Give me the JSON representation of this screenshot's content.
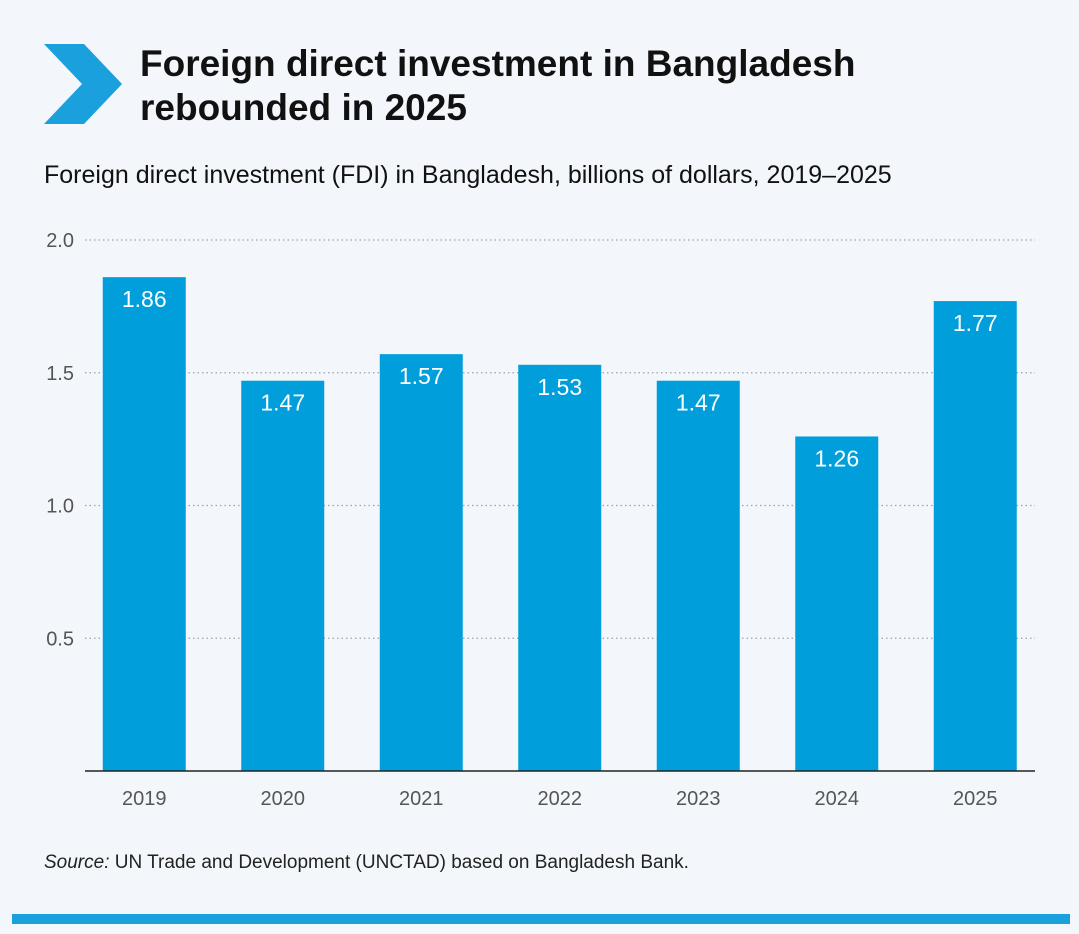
{
  "header": {
    "title": "Foreign direct investment in Bangladesh rebounded in 2025",
    "subtitle": "Foreign direct investment (FDI) in Bangladesh, billions of dollars, 2019–2025",
    "chevron_icon": "chevron-right-icon"
  },
  "source": {
    "label": "Source:",
    "text": " UN Trade and Development (UNCTAD) based on Bangladesh Bank."
  },
  "colors": {
    "bar": "#009edb",
    "accent": "#1aa0dc",
    "background": "#f3f7fb",
    "label_in_bar": "#ffffff",
    "axis_text": "#555555"
  },
  "chart_data": {
    "type": "bar",
    "categories": [
      "2019",
      "2020",
      "2021",
      "2022",
      "2023",
      "2024",
      "2025"
    ],
    "values": [
      1.86,
      1.47,
      1.57,
      1.53,
      1.47,
      1.26,
      1.77
    ],
    "value_labels": [
      "1.86",
      "1.47",
      "1.57",
      "1.53",
      "1.47",
      "1.26",
      "1.77"
    ],
    "yticks": [
      0.5,
      1.0,
      1.5,
      2.0
    ],
    "ytick_labels": [
      "0.5",
      "1.0",
      "1.5",
      "2.0"
    ],
    "ylim": [
      0,
      2.0
    ],
    "grid": true,
    "grid_style": "dotted",
    "legend": "none",
    "xlabel": "",
    "ylabel": ""
  }
}
